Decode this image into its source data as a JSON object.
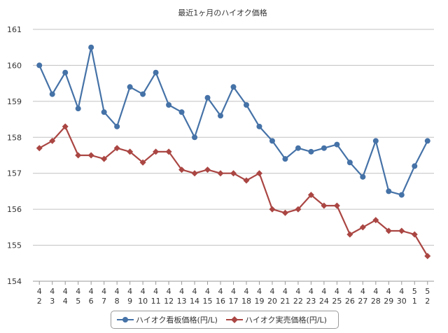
{
  "chart_data": {
    "type": "line",
    "title": "最近1ヶ月のハイオク価格",
    "xlabel": "",
    "ylabel": "",
    "ylim": [
      154,
      161
    ],
    "yticks": [
      154,
      155,
      156,
      157,
      158,
      159,
      160,
      161
    ],
    "grid": true,
    "legend_position": "bottom-center",
    "categories": [
      {
        "month": "4",
        "day": "2"
      },
      {
        "month": "4",
        "day": "3"
      },
      {
        "month": "4",
        "day": "4"
      },
      {
        "month": "4",
        "day": "5"
      },
      {
        "month": "4",
        "day": "6"
      },
      {
        "month": "4",
        "day": "7"
      },
      {
        "month": "4",
        "day": "8"
      },
      {
        "month": "4",
        "day": "9"
      },
      {
        "month": "4",
        "day": "10"
      },
      {
        "month": "4",
        "day": "11"
      },
      {
        "month": "4",
        "day": "12"
      },
      {
        "month": "4",
        "day": "13"
      },
      {
        "month": "4",
        "day": "14"
      },
      {
        "month": "4",
        "day": "15"
      },
      {
        "month": "4",
        "day": "16"
      },
      {
        "month": "4",
        "day": "17"
      },
      {
        "month": "4",
        "day": "18"
      },
      {
        "month": "4",
        "day": "19"
      },
      {
        "month": "4",
        "day": "20"
      },
      {
        "month": "4",
        "day": "21"
      },
      {
        "month": "4",
        "day": "22"
      },
      {
        "month": "4",
        "day": "23"
      },
      {
        "month": "4",
        "day": "24"
      },
      {
        "month": "4",
        "day": "25"
      },
      {
        "month": "4",
        "day": "26"
      },
      {
        "month": "4",
        "day": "27"
      },
      {
        "month": "4",
        "day": "28"
      },
      {
        "month": "4",
        "day": "29"
      },
      {
        "month": "4",
        "day": "30"
      },
      {
        "month": "5",
        "day": "1"
      },
      {
        "month": "5",
        "day": "2"
      }
    ],
    "series": [
      {
        "name": "ハイオク看板価格(円/L)",
        "color": "#4572a7",
        "marker": "circle",
        "values": [
          160.0,
          159.2,
          159.8,
          158.8,
          160.5,
          158.7,
          158.3,
          159.4,
          159.2,
          159.8,
          158.9,
          158.7,
          158.0,
          159.1,
          158.6,
          159.4,
          158.9,
          158.3,
          157.9,
          157.4,
          157.7,
          157.6,
          157.7,
          157.8,
          157.3,
          156.9,
          157.9,
          156.5,
          156.4,
          157.2,
          157.9
        ]
      },
      {
        "name": "ハイオク実売価格(円/L)",
        "color": "#aa4643",
        "marker": "diamond",
        "values": [
          157.7,
          157.9,
          158.3,
          157.5,
          157.5,
          157.4,
          157.7,
          157.6,
          157.3,
          157.6,
          157.6,
          157.1,
          157.0,
          157.1,
          157.0,
          157.0,
          156.8,
          157.0,
          156.0,
          155.9,
          156.0,
          156.4,
          156.1,
          156.1,
          155.3,
          155.5,
          155.7,
          155.4,
          155.4,
          155.3,
          154.7
        ]
      }
    ]
  }
}
